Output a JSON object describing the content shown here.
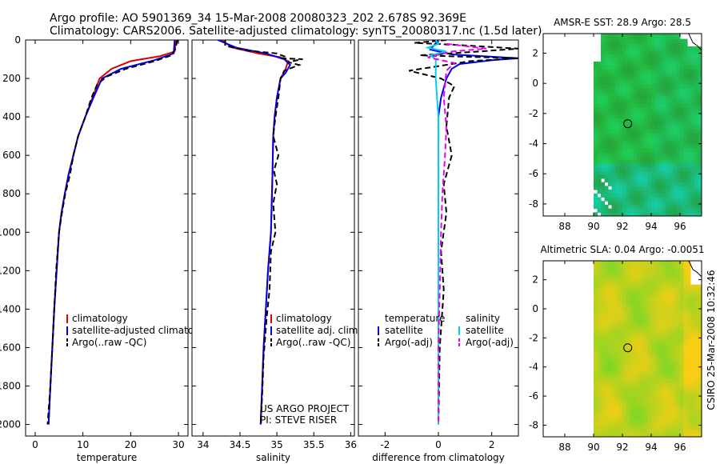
{
  "header": {
    "line1": "Argo profile: AO 5901369_34 15-Mar-2008 20080323_202 2.678S 92.369E",
    "line2": "Climatology: CARS2006. Satellite-adjusted climatology: synTS_20080317.nc (1.5d later)"
  },
  "side_label": "CSIRO 25-Mar-2008 10:32:46",
  "colors": {
    "climatology": "#dd0000",
    "satellite": "#0000ee",
    "argo": "#000000",
    "sal_sat": "#00d0f0",
    "sal_argo": "#ee00ee"
  },
  "chart_data": [
    {
      "type": "line",
      "id": "temperature",
      "xlabel": "temperature",
      "ylabel": "",
      "xlim": [
        -2,
        32
      ],
      "ylim": [
        2060,
        0
      ],
      "y_inverted": true,
      "xticks": [
        0,
        10,
        20,
        30
      ],
      "xtick_labels": [
        "0",
        "10",
        "20",
        "30"
      ],
      "yticks": [
        0,
        200,
        400,
        600,
        800,
        1000,
        1200,
        1400,
        1600,
        1800,
        2000
      ],
      "ytick_labels": [
        "0",
        "200",
        "400",
        "600",
        "800",
        "1000",
        "1200",
        "1400",
        "1600",
        "1800",
        "2000"
      ],
      "legend": [
        "climatology",
        "satellite-adjusted climatology",
        "Argo(..raw -QC)"
      ],
      "series": [
        {
          "name": "climatology",
          "color": "climatology",
          "dash": "solid",
          "points": [
            [
              29.5,
              0
            ],
            [
              29.2,
              60
            ],
            [
              26,
              85
            ],
            [
              20,
              110
            ],
            [
              16,
              150
            ],
            [
              13.5,
              200
            ],
            [
              12,
              300
            ],
            [
              10.5,
              400
            ],
            [
              9,
              500
            ],
            [
              8,
              600
            ],
            [
              7,
              700
            ],
            [
              6.2,
              800
            ],
            [
              5.5,
              900
            ],
            [
              5,
              1000
            ],
            [
              4.5,
              1200
            ],
            [
              4,
              1400
            ],
            [
              3.6,
              1600
            ],
            [
              3.2,
              1800
            ],
            [
              2.8,
              2000
            ]
          ]
        },
        {
          "name": "satellite-adjusted climatology",
          "color": "satellite",
          "dash": "solid",
          "points": [
            [
              29.2,
              0
            ],
            [
              29,
              70
            ],
            [
              25,
              105
            ],
            [
              18,
              150
            ],
            [
              14,
              200
            ],
            [
              12.2,
              300
            ],
            [
              10.5,
              400
            ],
            [
              9,
              500
            ],
            [
              8,
              600
            ],
            [
              7,
              700
            ],
            [
              6.2,
              800
            ],
            [
              5.5,
              900
            ],
            [
              5,
              1000
            ],
            [
              4.5,
              1200
            ],
            [
              4,
              1400
            ],
            [
              3.6,
              1600
            ],
            [
              3.2,
              1800
            ],
            [
              2.8,
              2000
            ]
          ]
        },
        {
          "name": "Argo(..raw -QC)",
          "color": "argo",
          "dash": "dash",
          "points": [
            [
              29.8,
              0
            ],
            [
              29.3,
              50
            ],
            [
              28.5,
              80
            ],
            [
              25,
              110
            ],
            [
              19,
              150
            ],
            [
              15,
              190
            ],
            [
              13,
              230
            ],
            [
              11.8,
              300
            ],
            [
              10.5,
              400
            ],
            [
              9,
              500
            ],
            [
              8,
              600
            ],
            [
              7.3,
              700
            ],
            [
              6.3,
              800
            ],
            [
              5.6,
              900
            ],
            [
              5,
              1000
            ],
            [
              4.4,
              1200
            ],
            [
              4,
              1400
            ],
            [
              3.6,
              1600
            ],
            [
              3.2,
              1800
            ],
            [
              2.6,
              2000
            ]
          ]
        }
      ]
    },
    {
      "type": "line",
      "id": "salinity",
      "xlabel": "salinity",
      "xlim": [
        33.85,
        36.05
      ],
      "ylim": [
        2060,
        0
      ],
      "y_inverted": true,
      "xticks": [
        34,
        34.5,
        35,
        35.5,
        36
      ],
      "xtick_labels": [
        "34",
        "34.5",
        "35",
        "35.5",
        "36"
      ],
      "legend": [
        "climatology",
        "satellite adj. clim.",
        "Argo(..raw -QC)"
      ],
      "annotations": [
        "US ARGO PROJECT",
        "PI: STEVE RISER"
      ],
      "series": [
        {
          "name": "climatology",
          "color": "climatology",
          "dash": "solid",
          "points": [
            [
              34.25,
              0
            ],
            [
              34.4,
              40
            ],
            [
              34.75,
              70
            ],
            [
              35.05,
              90
            ],
            [
              35.15,
              110
            ],
            [
              35.12,
              150
            ],
            [
              35.05,
              200
            ],
            [
              35,
              300
            ],
            [
              34.97,
              400
            ],
            [
              34.95,
              500
            ],
            [
              34.94,
              700
            ],
            [
              34.92,
              1000
            ],
            [
              34.88,
              1200
            ],
            [
              34.85,
              1400
            ],
            [
              34.82,
              1600
            ],
            [
              34.8,
              1800
            ],
            [
              34.78,
              2000
            ]
          ]
        },
        {
          "name": "satellite adj. clim.",
          "color": "satellite",
          "dash": "solid",
          "points": [
            [
              34.2,
              0
            ],
            [
              34.45,
              40
            ],
            [
              34.85,
              70
            ],
            [
              35.1,
              100
            ],
            [
              35.18,
              130
            ],
            [
              35.12,
              170
            ],
            [
              35.05,
              200
            ],
            [
              35,
              300
            ],
            [
              34.97,
              400
            ],
            [
              34.95,
              500
            ],
            [
              34.94,
              700
            ],
            [
              34.92,
              1000
            ],
            [
              34.88,
              1200
            ],
            [
              34.85,
              1400
            ],
            [
              34.82,
              1600
            ],
            [
              34.8,
              1800
            ],
            [
              34.78,
              2000
            ]
          ]
        },
        {
          "name": "Argo(..raw -QC)",
          "color": "argo",
          "dash": "dash",
          "points": [
            [
              34.3,
              0
            ],
            [
              34.3,
              30
            ],
            [
              34.6,
              55
            ],
            [
              35.0,
              70
            ],
            [
              35.1,
              85
            ],
            [
              35.05,
              95
            ],
            [
              35.35,
              100
            ],
            [
              35.15,
              115
            ],
            [
              35.3,
              130
            ],
            [
              35.1,
              160
            ],
            [
              35.05,
              200
            ],
            [
              35.02,
              300
            ],
            [
              34.98,
              400
            ],
            [
              34.95,
              500
            ],
            [
              35.02,
              600
            ],
            [
              34.96,
              680
            ],
            [
              35.0,
              750
            ],
            [
              34.95,
              850
            ],
            [
              34.98,
              1000
            ],
            [
              34.92,
              1100
            ],
            [
              34.9,
              1300
            ],
            [
              34.86,
              1450
            ],
            [
              34.82,
              1650
            ],
            [
              34.8,
              1850
            ],
            [
              34.78,
              2000
            ]
          ]
        }
      ]
    },
    {
      "type": "line",
      "id": "difference",
      "xlabel": "difference from climatology",
      "xlim": [
        -3,
        3
      ],
      "ylim": [
        2060,
        0
      ],
      "y_inverted": true,
      "xticks": [
        -2,
        0,
        2
      ],
      "xtick_labels": [
        "-2",
        "0",
        "2"
      ],
      "legend_titles": [
        "temperature",
        "salinity"
      ],
      "legend_left": [
        "satellite",
        "Argo(-adj)"
      ],
      "legend_right": [
        "satellite",
        "Argo(-adj)"
      ],
      "series": [
        {
          "name": "temperature satellite",
          "color": "satellite",
          "dash": "solid",
          "points": [
            [
              0,
              0
            ],
            [
              -0.3,
              50
            ],
            [
              0.5,
              75
            ],
            [
              3,
              95
            ],
            [
              2,
              105
            ],
            [
              0.8,
              125
            ],
            [
              0.5,
              150
            ],
            [
              0.3,
              200
            ],
            [
              0.1,
              300
            ],
            [
              0,
              400
            ],
            [
              0,
              2000
            ]
          ]
        },
        {
          "name": "temperature Argo(-adj)",
          "color": "argo",
          "dash": "dash",
          "points": [
            [
              0.3,
              0
            ],
            [
              -0.9,
              15
            ],
            [
              0.6,
              25
            ],
            [
              3,
              45
            ],
            [
              1.5,
              60
            ],
            [
              -0.7,
              80
            ],
            [
              3,
              95
            ],
            [
              1.2,
              110
            ],
            [
              -1.1,
              160
            ],
            [
              0.1,
              200
            ],
            [
              0.6,
              240
            ],
            [
              0.4,
              300
            ],
            [
              0.3,
              450
            ],
            [
              0.5,
              600
            ],
            [
              0.2,
              750
            ],
            [
              0.3,
              900
            ],
            [
              0.1,
              1100
            ],
            [
              0.2,
              1300
            ],
            [
              0.05,
              1600
            ],
            [
              0,
              2000
            ]
          ]
        },
        {
          "name": "salinity satellite",
          "color": "sal_sat",
          "dash": "solid",
          "points": [
            [
              -0.1,
              0
            ],
            [
              0,
              20
            ],
            [
              -0.4,
              40
            ],
            [
              0.3,
              60
            ],
            [
              -0.3,
              80
            ],
            [
              -0.1,
              100
            ],
            [
              -0.1,
              200
            ],
            [
              0,
              400
            ],
            [
              0,
              2000
            ]
          ]
        },
        {
          "name": "salinity Argo(-adj)",
          "color": "sal_argo",
          "dash": "dash",
          "points": [
            [
              0.3,
              20
            ],
            [
              1.8,
              45
            ],
            [
              0.5,
              60
            ],
            [
              -0.4,
              90
            ],
            [
              0.6,
              120
            ],
            [
              0.3,
              160
            ],
            [
              0.2,
              300
            ],
            [
              0.3,
              450
            ],
            [
              0.25,
              600
            ],
            [
              0.15,
              800
            ],
            [
              0.1,
              1000
            ],
            [
              0.05,
              1300
            ],
            [
              0,
              1600
            ],
            [
              0,
              2000
            ]
          ]
        }
      ]
    },
    {
      "type": "heatmap",
      "id": "sst_map",
      "title": "AMSR-E SST: 28.9 Argo: 28.5",
      "xlim": [
        86.5,
        97.5
      ],
      "ylim": [
        -8.8,
        3.3
      ],
      "xticks": [
        88,
        90,
        92,
        94,
        96
      ],
      "xtick_labels": [
        "88",
        "90",
        "92",
        "94",
        "96"
      ],
      "yticks": [
        2,
        0,
        -2,
        -4,
        -6,
        -8
      ],
      "ytick_labels": [
        "2",
        "0",
        "-2",
        "-4",
        "-6",
        "-8"
      ],
      "marker": [
        92.37,
        -2.68
      ]
    },
    {
      "type": "heatmap",
      "id": "sla_map",
      "title": "Altimetric SLA: 0.04 Argo: -0.0051",
      "xlim": [
        86.5,
        97.5
      ],
      "ylim": [
        -8.8,
        3.3
      ],
      "xticks": [
        88,
        90,
        92,
        94,
        96
      ],
      "xtick_labels": [
        "88",
        "90",
        "92",
        "94",
        "96"
      ],
      "yticks": [
        2,
        0,
        -2,
        -4,
        -6,
        -8
      ],
      "ytick_labels": [
        "2",
        "0",
        "-2",
        "-4",
        "-6",
        "-8"
      ],
      "marker": [
        92.37,
        -2.68
      ]
    }
  ]
}
